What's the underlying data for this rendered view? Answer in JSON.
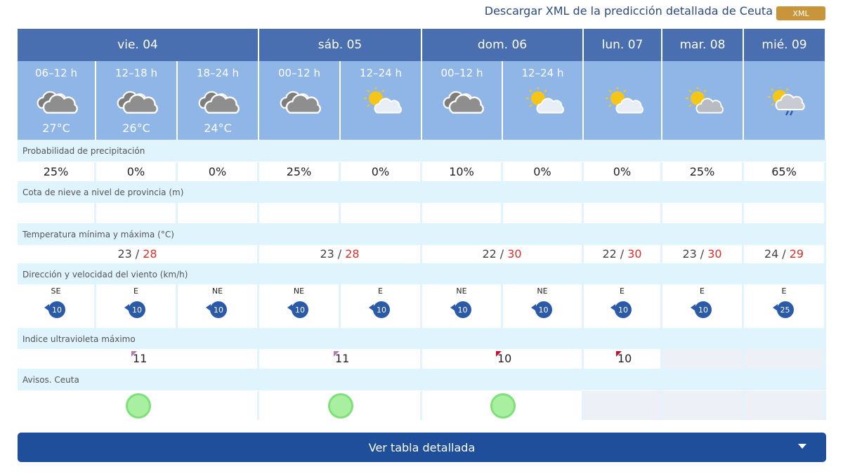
{
  "header": {
    "link": "Descargar XML de la predicción detallada de Ceuta",
    "badge": "XML"
  },
  "days": [
    {
      "label": "vie. 04",
      "min": "23",
      "max": "28",
      "uv": "11"
    },
    {
      "label": "sáb. 05",
      "min": "23",
      "max": "28",
      "uv": "11"
    },
    {
      "label": "dom. 06",
      "min": "22",
      "max": "30",
      "uv": "10"
    },
    {
      "label": "lun. 07",
      "min": "22",
      "max": "30",
      "uv": "10"
    },
    {
      "label": "mar. 08",
      "min": "23",
      "max": "30",
      "uv": null
    },
    {
      "label": "mié. 09",
      "min": "24",
      "max": "29",
      "uv": null
    }
  ],
  "separator": "/",
  "columns": [
    {
      "period": "06–12 h",
      "temp": "27°C",
      "precip": "25%",
      "wind_dir": "SE",
      "wind_speed": "10"
    },
    {
      "period": "12–18 h",
      "temp": "26°C",
      "precip": "0%",
      "wind_dir": "E",
      "wind_speed": "10"
    },
    {
      "period": "18–24 h",
      "temp": "24°C",
      "precip": "0%",
      "wind_dir": "NE",
      "wind_speed": "10"
    },
    {
      "period": "00–12 h",
      "temp": null,
      "precip": "25%",
      "wind_dir": "NE",
      "wind_speed": "10"
    },
    {
      "period": "12–24 h",
      "temp": null,
      "precip": "0%",
      "wind_dir": "E",
      "wind_speed": "10"
    },
    {
      "period": "00–12 h",
      "temp": null,
      "precip": "10%",
      "wind_dir": "NE",
      "wind_speed": "10"
    },
    {
      "period": "12–24 h",
      "temp": null,
      "precip": "0%",
      "wind_dir": "NE",
      "wind_speed": "10"
    },
    {
      "period": null,
      "temp": null,
      "precip": "0%",
      "wind_dir": "E",
      "wind_speed": "10"
    },
    {
      "period": null,
      "temp": null,
      "precip": "25%",
      "wind_dir": "E",
      "wind_speed": "10"
    },
    {
      "period": null,
      "temp": null,
      "precip": "65%",
      "wind_dir": "E",
      "wind_speed": "25"
    }
  ],
  "rows": {
    "precip": "Probabilidad de precipitación",
    "snow": "Cota de nieve a nivel de provincia (m)",
    "temp": "Temperatura mínima y máxima (°C)",
    "wind": "Dirección y velocidad del viento (km/h)",
    "uv": "Indice ultravioleta máximo",
    "avisos": "Avisos. Ceuta"
  },
  "button": "Ver tabla detallada"
}
